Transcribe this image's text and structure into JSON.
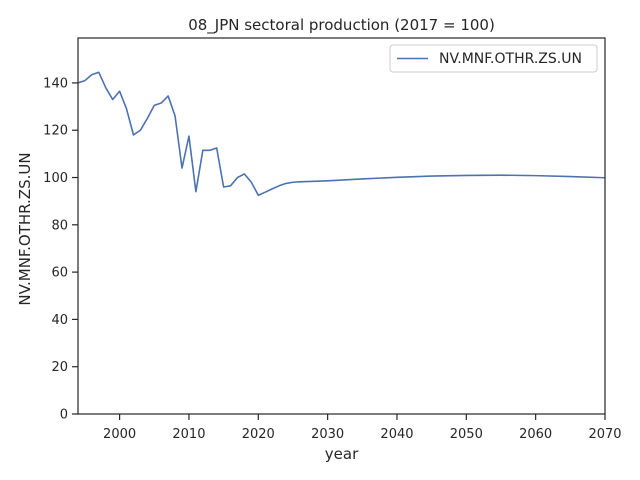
{
  "chart_data": {
    "type": "line",
    "title": "08_JPN sectoral production (2017 = 100)",
    "xlabel": "year",
    "ylabel": "NV.MNF.OTHR.ZS.UN",
    "xlim": [
      1994,
      2070
    ],
    "ylim": [
      0,
      159
    ],
    "xticks": [
      2000,
      2010,
      2020,
      2030,
      2040,
      2050,
      2060,
      2070
    ],
    "yticks": [
      0,
      20,
      40,
      60,
      80,
      100,
      120,
      140
    ],
    "grid": false,
    "legend_position": "top-right",
    "series": [
      {
        "name": "NV.MNF.OTHR.ZS.UN",
        "color": "#4c72b0",
        "x": [
          1994,
          1995,
          1996,
          1997,
          1998,
          1999,
          2000,
          2001,
          2002,
          2003,
          2004,
          2005,
          2006,
          2007,
          2008,
          2009,
          2010,
          2011,
          2012,
          2013,
          2014,
          2015,
          2016,
          2017,
          2018,
          2019,
          2020,
          2021,
          2022,
          2023,
          2024,
          2025,
          2026,
          2028,
          2030,
          2035,
          2040,
          2045,
          2050,
          2055,
          2060,
          2065,
          2070
        ],
        "values": [
          140,
          141,
          143.5,
          144.5,
          138,
          133,
          136.5,
          129,
          118,
          120,
          125,
          130.5,
          131.5,
          134.5,
          126,
          104,
          117.5,
          94,
          111.5,
          111.5,
          112.5,
          96,
          96.5,
          100,
          101.5,
          98,
          92.5,
          93.8,
          95.2,
          96.5,
          97.5,
          98.0,
          98.2,
          98.4,
          98.6,
          99.4,
          100.1,
          100.6,
          100.9,
          101.0,
          100.8,
          100.4,
          99.9
        ]
      }
    ]
  }
}
